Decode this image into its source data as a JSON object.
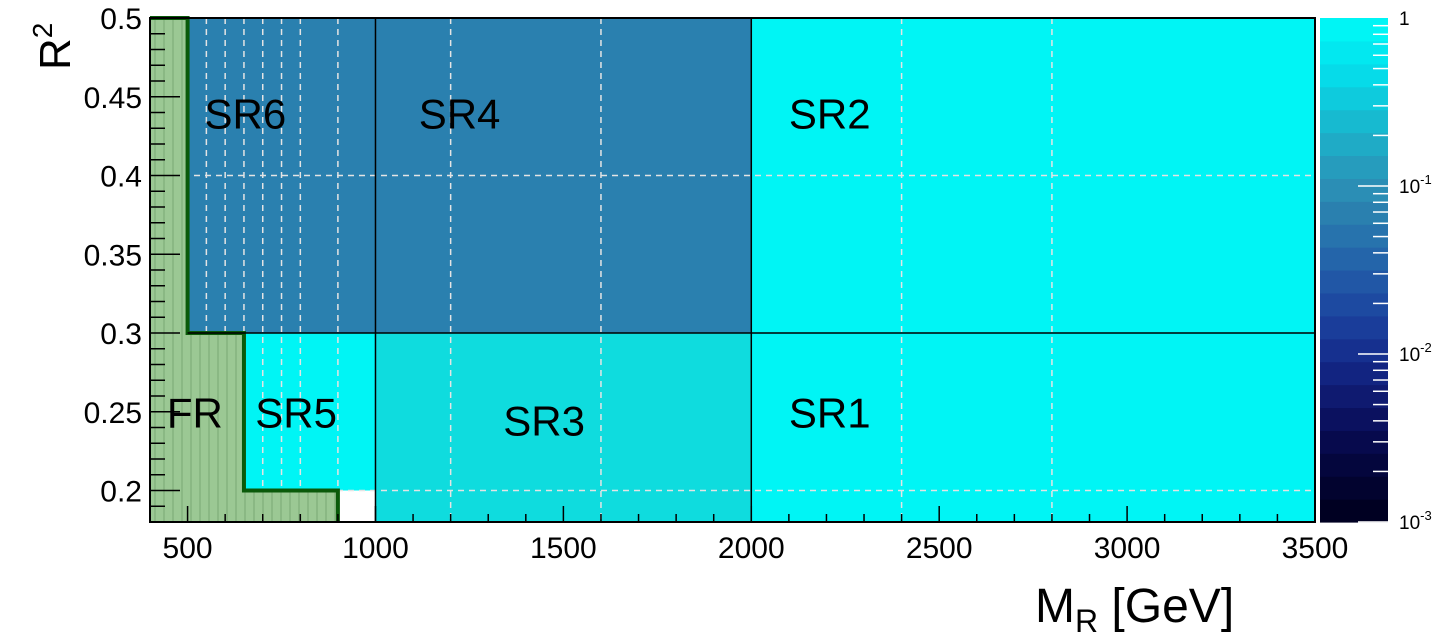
{
  "chart_data": {
    "type": "heatmap",
    "title": "",
    "xlabel": "M",
    "xlabel_sub": "R",
    "xlabel_unit": " [GeV]",
    "ylabel": "R",
    "ylabel_sup": "2",
    "xlim": [
      400,
      3500
    ],
    "ylim": [
      0.18,
      0.5
    ],
    "xticks": [
      500,
      1000,
      1500,
      2000,
      2500,
      3000,
      3500
    ],
    "yticks": [
      0.2,
      0.25,
      0.3,
      0.35,
      0.4,
      0.45,
      0.5
    ],
    "ytick_labels": [
      "0.2",
      "0.25",
      "0.3",
      "0.35",
      "0.4",
      "0.45",
      "0.5"
    ],
    "grid": true,
    "colorbar": {
      "scale": "log",
      "range": [
        0.001,
        1
      ],
      "ticks": [
        {
          "value": 1,
          "base": "1",
          "exp": ""
        },
        {
          "value": 0.1,
          "base": "10",
          "exp": "-1"
        },
        {
          "value": 0.01,
          "base": "10",
          "exp": "-2"
        },
        {
          "value": 0.001,
          "base": "10",
          "exp": "-3"
        }
      ]
    },
    "regions": [
      {
        "label": "SR1",
        "x": [
          2000,
          3500
        ],
        "y": [
          0.18,
          0.3
        ],
        "value": 1.0,
        "color": "#00f5f5"
      },
      {
        "label": "SR2",
        "x": [
          2000,
          3500
        ],
        "y": [
          0.3,
          0.5
        ],
        "value": 1.0,
        "color": "#00f5f5"
      },
      {
        "label": "SR3",
        "x": [
          1000,
          2000
        ],
        "y": [
          0.18,
          0.3
        ],
        "value": 0.7,
        "color": "#0fdcde"
      },
      {
        "label": "SR4",
        "x": [
          1000,
          2000
        ],
        "y": [
          0.3,
          0.5
        ],
        "value": 0.12,
        "color": "#2a80af"
      },
      {
        "label": "SR5",
        "x": [
          500,
          1000
        ],
        "y": [
          0.18,
          0.3
        ],
        "value": 1.0,
        "color": "#00f5f5"
      },
      {
        "label": "SR6",
        "x": [
          500,
          1000
        ],
        "y": [
          0.3,
          0.5
        ],
        "value": 0.12,
        "color": "#2a80af"
      }
    ],
    "fr_region": {
      "label": "FR",
      "boundary": [
        [
          400,
          0.5
        ],
        [
          500,
          0.5
        ],
        [
          500,
          0.3
        ],
        [
          650,
          0.3
        ],
        [
          650,
          0.2
        ],
        [
          900,
          0.2
        ],
        [
          900,
          0.18
        ],
        [
          400,
          0.18
        ]
      ],
      "fill": "#9bc894",
      "line": "#0a5a0a"
    },
    "empty_cell": {
      "x": [
        900,
        1000
      ],
      "y": [
        0.18,
        0.2
      ]
    }
  }
}
